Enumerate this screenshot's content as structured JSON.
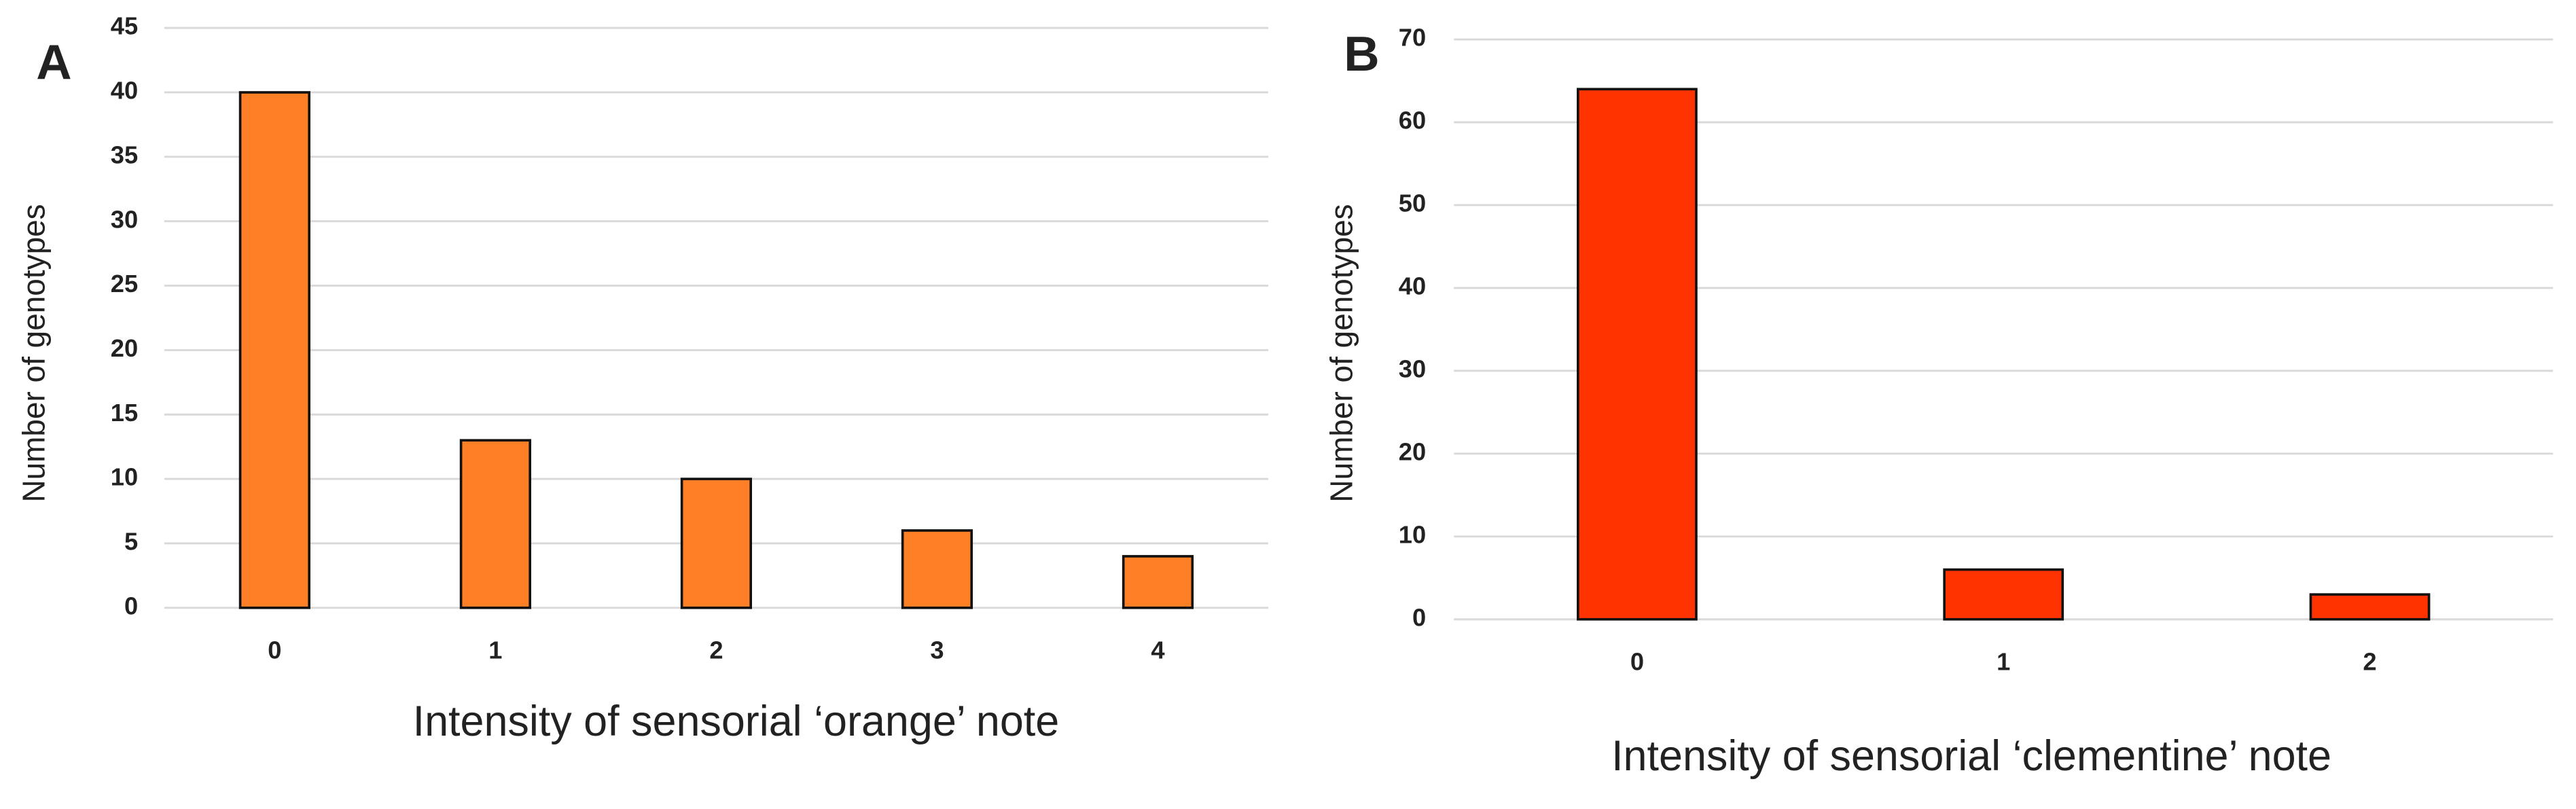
{
  "chart_data": [
    {
      "type": "bar",
      "panel_label": "A",
      "x_label": "Intensity of sensorial ‘orange’ note",
      "y_label": "Number of genotypes",
      "categories": [
        "0",
        "1",
        "2",
        "3",
        "4"
      ],
      "values": [
        40,
        13,
        10,
        6,
        4
      ],
      "color": "#ff7f27",
      "ylim": [
        0,
        45
      ],
      "yticks": [
        0,
        5,
        10,
        15,
        20,
        25,
        30,
        35,
        40,
        45
      ],
      "grid": true
    },
    {
      "type": "bar",
      "panel_label": "B",
      "x_label": "Intensity of sensorial ‘clementine’ note",
      "y_label": "Number of genotypes",
      "categories": [
        "0",
        "1",
        "2"
      ],
      "values": [
        64,
        6,
        3
      ],
      "color": "#ff3300",
      "ylim": [
        0,
        70
      ],
      "yticks": [
        0,
        10,
        20,
        30,
        40,
        50,
        60,
        70
      ],
      "grid": true
    }
  ]
}
